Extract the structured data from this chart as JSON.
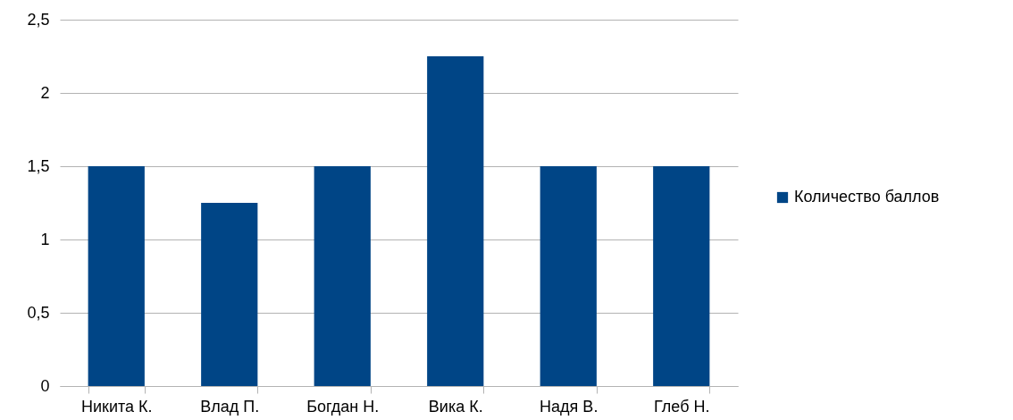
{
  "chart_data": {
    "type": "bar",
    "categories": [
      "Никита К.",
      "Влад П.",
      "Богдан Н.",
      "Вика К.",
      "Надя В.",
      "Глеб Н."
    ],
    "series": [
      {
        "name": "Количество баллов",
        "color": "#004586",
        "values": [
          1.5,
          1.25,
          1.5,
          2.25,
          1.5,
          1.5
        ]
      }
    ],
    "ylim": [
      0,
      2.5
    ],
    "yticks": [
      0,
      {
        "value": 0.5,
        "label": "0,5"
      },
      1,
      {
        "value": 1.5,
        "label": "1,5"
      },
      2,
      {
        "value": 2.5,
        "label": "2,5"
      }
    ],
    "grid": "y",
    "legend": "right"
  }
}
